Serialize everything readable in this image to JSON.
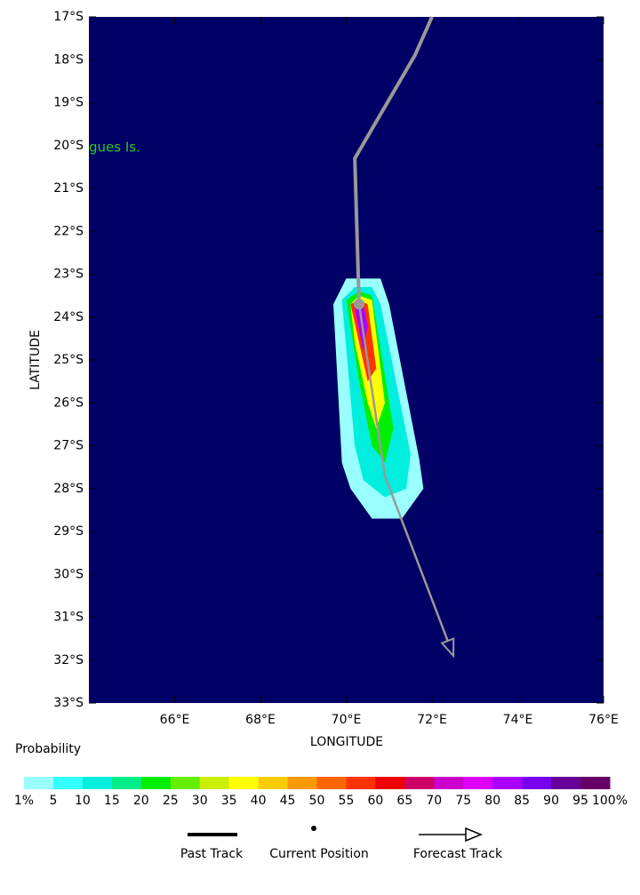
{
  "chart_data": {
    "type": "track-map",
    "xlabel": "LONGITUDE",
    "ylabel": "LATITUDE",
    "xlim": [
      64,
      76
    ],
    "ylim": [
      -33,
      -17
    ],
    "xticks": [
      {
        "value": 66,
        "label": "66°E"
      },
      {
        "value": 68,
        "label": "68°E"
      },
      {
        "value": 70,
        "label": "70°E"
      },
      {
        "value": 72,
        "label": "72°E"
      },
      {
        "value": 74,
        "label": "74°E"
      },
      {
        "value": 76,
        "label": "76°E"
      }
    ],
    "yticks": [
      {
        "value": -17,
        "label": "17°S"
      },
      {
        "value": -18,
        "label": "18°S"
      },
      {
        "value": -19,
        "label": "19°S"
      },
      {
        "value": -20,
        "label": "20°S"
      },
      {
        "value": -21,
        "label": "21°S"
      },
      {
        "value": -22,
        "label": "22°S"
      },
      {
        "value": -23,
        "label": "23°S"
      },
      {
        "value": -24,
        "label": "24°S"
      },
      {
        "value": -25,
        "label": "25°S"
      },
      {
        "value": -26,
        "label": "26°S"
      },
      {
        "value": -27,
        "label": "27°S"
      },
      {
        "value": -28,
        "label": "28°S"
      },
      {
        "value": -29,
        "label": "29°S"
      },
      {
        "value": -30,
        "label": "30°S"
      },
      {
        "value": -31,
        "label": "31°S"
      },
      {
        "value": -32,
        "label": "32°S"
      },
      {
        "value": -33,
        "label": "33°S"
      }
    ],
    "background": "#000066",
    "annotations": [
      {
        "text": "gues Is.",
        "x": 64,
        "y": -20.05,
        "color": "#22cc22"
      }
    ],
    "probability_contours": [
      {
        "level": 1,
        "lon": [
          69.7,
          70.0,
          70.8,
          71.0,
          71.7,
          71.8,
          71.3,
          70.6,
          70.1,
          69.9
        ],
        "lat": [
          -23.7,
          -23.1,
          -23.1,
          -23.7,
          -27.3,
          -28.0,
          -28.7,
          -28.7,
          -28.0,
          -27.4
        ]
      },
      {
        "level": 10,
        "lon": [
          69.9,
          70.2,
          70.6,
          70.8,
          71.5,
          71.4,
          70.9,
          70.4,
          70.2
        ],
        "lat": [
          -23.6,
          -23.3,
          -23.3,
          -23.7,
          -27.2,
          -28.0,
          -28.2,
          -27.8,
          -27.0
        ]
      },
      {
        "level": 20,
        "lon": [
          70.0,
          70.3,
          70.6,
          71.1,
          70.9,
          70.6,
          70.3
        ],
        "lat": [
          -23.6,
          -23.4,
          -23.5,
          -26.6,
          -27.4,
          -27.0,
          -25.5
        ]
      },
      {
        "level": 35,
        "lon": [
          70.1,
          70.3,
          70.6,
          70.9,
          70.7,
          70.5,
          70.2
        ],
        "lat": [
          -23.7,
          -23.5,
          -23.6,
          -26.0,
          -26.6,
          -26.0,
          -24.6
        ]
      },
      {
        "level": 55,
        "lon": [
          70.1,
          70.3,
          70.5,
          70.7,
          70.5,
          70.3
        ],
        "lat": [
          -23.7,
          -23.6,
          -23.7,
          -25.2,
          -25.5,
          -24.6
        ]
      },
      {
        "level": 80,
        "lon": [
          70.2,
          70.4,
          70.5,
          70.4,
          70.3
        ],
        "lat": [
          -23.8,
          -23.7,
          -24.2,
          -24.8,
          -24.3
        ]
      }
    ],
    "series": [
      {
        "name": "Past Track",
        "color": "#999999",
        "x": [
          72.0,
          71.6,
          70.2,
          70.3
        ],
        "values": [
          -17.0,
          -17.9,
          -20.3,
          -23.7
        ]
      },
      {
        "name": "Forecast Track",
        "color": "#999999",
        "x": [
          70.3,
          70.9,
          72.5
        ],
        "values": [
          -23.7,
          -27.7,
          -31.9
        ]
      }
    ],
    "current_position": {
      "name": "Current Position",
      "x": 70.3,
      "y": -23.7
    },
    "colorbar": {
      "title": "Probability",
      "ticks": [
        {
          "value": 1,
          "label": "1%"
        },
        5,
        10,
        15,
        20,
        25,
        30,
        35,
        40,
        45,
        50,
        55,
        60,
        65,
        70,
        75,
        80,
        85,
        90,
        95,
        {
          "value": 100,
          "label": "100%"
        }
      ],
      "colors": [
        "#99ffff",
        "#33ffff",
        "#00eedd",
        "#00ee88",
        "#00ee00",
        "#66ee00",
        "#ccee00",
        "#ffff00",
        "#ffcc00",
        "#ff9900",
        "#ff6600",
        "#ff3300",
        "#ee0000",
        "#cc0066",
        "#cc00cc",
        "#dd00ff",
        "#aa00ff",
        "#7700ee",
        "#660099",
        "#660066"
      ]
    }
  }
}
